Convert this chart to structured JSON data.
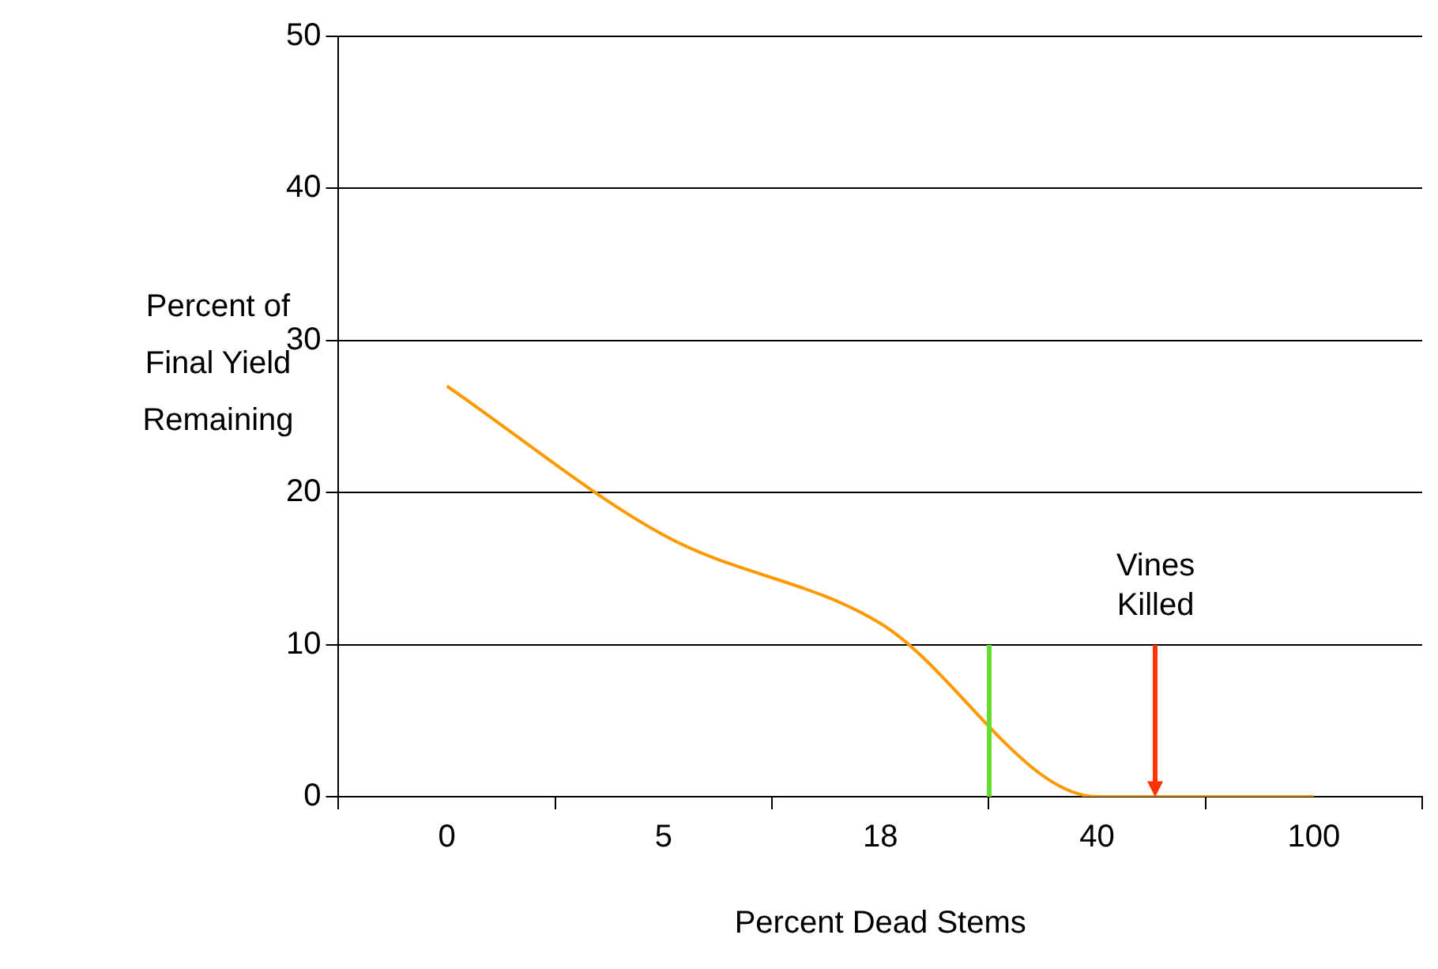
{
  "chart_data": {
    "type": "line",
    "xlabel": "Percent Dead Stems",
    "ylabel": "Percent of Final Yield Remaining",
    "categories": [
      "0",
      "5",
      "18",
      "40",
      "100"
    ],
    "series": [
      {
        "color": "#ff9900",
        "values": [
          27,
          17.2,
          11.4,
          0,
          0
        ]
      }
    ],
    "ylim": [
      0,
      50
    ],
    "yticks": [
      0,
      10,
      20,
      30,
      40,
      50
    ],
    "grid": "y",
    "legend": false,
    "marker": "none",
    "annotations": [
      "Vines Killed"
    ]
  }
}
